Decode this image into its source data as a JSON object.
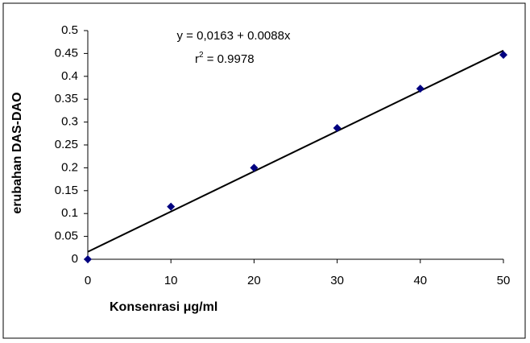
{
  "chart_data": {
    "type": "scatter",
    "x_label": "Konsenrasi μg/ml",
    "y_label": "erubahan DAS-DAO",
    "annotation": {
      "equation": "y = 0,0163 + 0.0088x",
      "r_prefix": "r",
      "r_sup": "2",
      "r_value": " = 0.9978"
    },
    "trendline": {
      "intercept": 0.0163,
      "slope": 0.0088,
      "color": "#000000"
    },
    "x": [
      0,
      10,
      20,
      30,
      40,
      50
    ],
    "series": [
      {
        "name": null,
        "color": "#000080",
        "values": [
          0,
          0.115,
          0.2,
          0.287,
          0.373,
          0.447
        ]
      }
    ],
    "xlim": [
      0,
      50
    ],
    "xticks": [
      0,
      10,
      20,
      30,
      40,
      50
    ],
    "ylim": [
      0,
      0.5
    ],
    "yticks": [
      0,
      0.05,
      0.1,
      0.15,
      0.2,
      0.25,
      0.3,
      0.35,
      0.4,
      0.45,
      0.5
    ],
    "grid": false
  }
}
